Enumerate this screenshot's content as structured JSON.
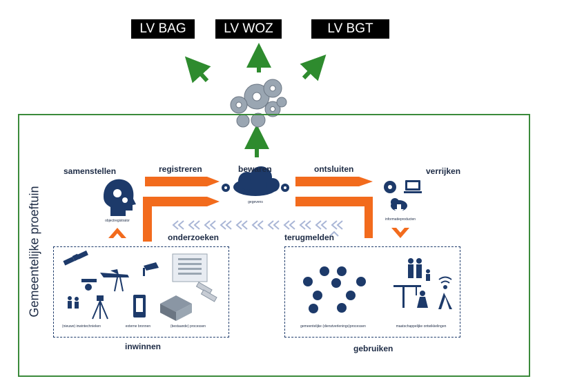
{
  "outputs": [
    "LV BAG",
    "LV WOZ",
    "LV BGT"
  ],
  "side_title": "Gemeentelijke proeftuin",
  "process": {
    "samenstellen": "samenstellen",
    "registreren": "registreren",
    "bewaren": "bewaren",
    "ontsluiten": "ontsluiten",
    "verrijken": "verrijken",
    "onderzoeken": "onderzoeken",
    "terugmelden": "terugmelden",
    "inwinnen": "inwinnen",
    "gebruiken": "gebruiken"
  },
  "small_labels": {
    "objectregistrator": "objectregistrator",
    "gegevens": "gegevens",
    "informatieproducten": "informatieproducten",
    "inwintechnieken": "(nieuwe) inwintechnieken",
    "externe_bronnen": "externe bronnen",
    "processen": "(bestaande) processen",
    "dienstverlening": "gemeentelijke (dienstverlenings)processen",
    "ontwikkelingen": "maatschappelijke ontwikkelingen"
  },
  "colors": {
    "green": "#2e8b2e",
    "orange": "#f26b1d",
    "navy": "#1d3a6a"
  }
}
